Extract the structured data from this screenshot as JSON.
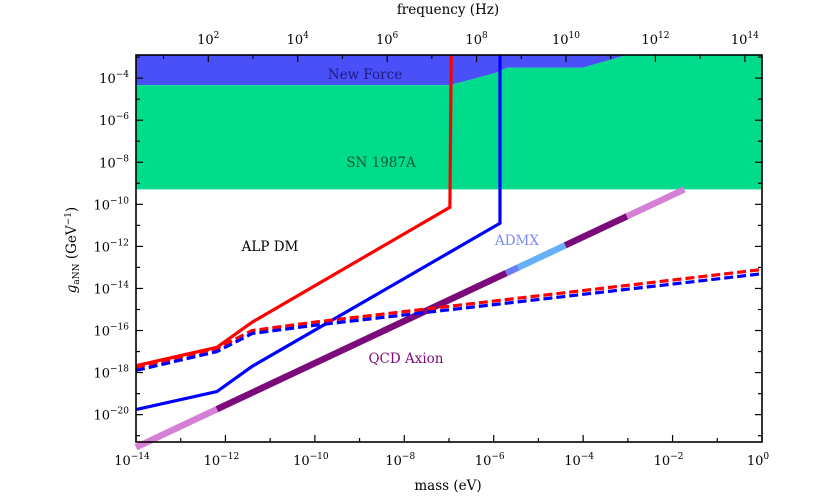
{
  "chart_data": {
    "type": "line",
    "xlabel": "mass (eV)",
    "x2label": "frequency (Hz)",
    "ylabel": {
      "symbol": "g",
      "sub": "aNN",
      "unit_open": " (GeV",
      "sup": "−1",
      "unit_close": ")"
    },
    "x_scale": "log",
    "y_scale": "log",
    "xlim_log10": [
      -14,
      0
    ],
    "ylim_log10": [
      -21.3,
      -2.9
    ],
    "x_tick_exponents": [
      -14,
      -12,
      -10,
      -8,
      -6,
      -4,
      -2,
      0
    ],
    "y_tick_exponents": [
      -4,
      -6,
      -8,
      -10,
      -12,
      -14,
      -16,
      -18,
      -20
    ],
    "x2_tick_exponents": [
      2,
      4,
      6,
      8,
      10,
      12,
      14
    ],
    "grid": false,
    "colors": {
      "new_force": "#4a50f8",
      "sn1987a": "#00dc8c",
      "red": "#ff0000",
      "blue": "#0000ff",
      "qcd_dark": "#7b0a7b",
      "qcd_light": "#d67fd6",
      "admx": "#66b0f8",
      "admx_edge": "#6a7ef0"
    },
    "regions": [
      {
        "label": "New Force",
        "color_key": "new_force",
        "lower_log10": [
          [
            -14,
            -4.33
          ],
          [
            -6.98,
            -4.33
          ],
          [
            -5.97,
            -3.76
          ],
          [
            -5.7,
            -3.5
          ],
          [
            -4.0,
            -3.5
          ],
          [
            -3.02,
            -2.9
          ]
        ],
        "upper_log10": -2.9
      },
      {
        "label": "SN 1987A",
        "color_key": "sn1987a",
        "upper_log10": [
          [
            -14,
            -4.33
          ],
          [
            -6.98,
            -4.33
          ],
          [
            -5.97,
            -3.76
          ],
          [
            -5.7,
            -3.5
          ],
          [
            -4.0,
            -3.5
          ],
          [
            -3.02,
            -2.9
          ],
          [
            0,
            -2.9
          ]
        ],
        "lower_log10": -9.29
      }
    ],
    "series": [
      {
        "color_key": "red",
        "style": "solid",
        "points_log10": [
          [
            -14,
            -17.67
          ],
          [
            -12.19,
            -16.8
          ],
          [
            -11.4,
            -15.6
          ],
          [
            -6.98,
            -10.14
          ],
          [
            -6.95,
            -2.9
          ]
        ]
      },
      {
        "color_key": "blue",
        "style": "solid",
        "points_log10": [
          [
            -14,
            -19.76
          ],
          [
            -12.19,
            -18.9
          ],
          [
            -11.4,
            -17.7
          ],
          [
            -5.86,
            -10.9
          ],
          [
            -5.86,
            -2.9
          ]
        ]
      },
      {
        "color_key": "red",
        "style": "dashed",
        "points_log10": [
          [
            -14,
            -17.75
          ],
          [
            -12.19,
            -16.85
          ],
          [
            -11.4,
            -16.0
          ],
          [
            -10,
            -15.6
          ],
          [
            0,
            -13.1
          ]
        ]
      },
      {
        "color_key": "blue",
        "style": "dashed",
        "points_log10": [
          [
            -14,
            -17.9
          ],
          [
            -12.19,
            -17.0
          ],
          [
            -11.4,
            -16.14
          ],
          [
            -10,
            -15.75
          ],
          [
            0,
            -13.3
          ]
        ]
      }
    ],
    "qcd_axion": {
      "label": "QCD Axion",
      "relation": "log10 g = log10 m - 7.55",
      "segments": [
        {
          "from": -14,
          "to": -12.19,
          "color_key": "qcd_light"
        },
        {
          "from": -12.19,
          "to": -5.72,
          "color_key": "qcd_dark"
        },
        {
          "from": -5.72,
          "to": -5.45,
          "color_key": "admx_edge"
        },
        {
          "from": -5.45,
          "to": -4.4,
          "color_key": "admx"
        },
        {
          "from": -4.4,
          "to": -3.02,
          "color_key": "qcd_dark"
        },
        {
          "from": -3.02,
          "to": -1.74,
          "color_key": "qcd_light"
        }
      ]
    },
    "annotations": {
      "new_force": "New Force",
      "sn1987a": "SN 1987A",
      "alp_dm": "ALP DM",
      "admx": "ADMX",
      "qcd_axion": "QCD Axion"
    }
  }
}
